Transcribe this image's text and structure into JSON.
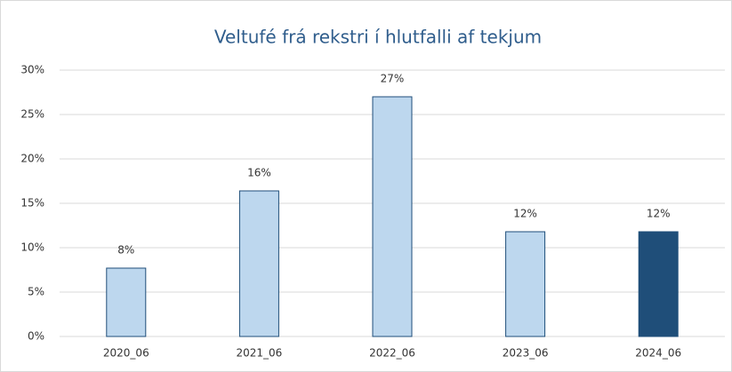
{
  "chart_data": {
    "type": "bar",
    "title": "Veltufé frá rekstri í hlutfalli af tekjum",
    "categories": [
      "2020_06",
      "2021_06",
      "2022_06",
      "2023_06",
      "2024_06"
    ],
    "values": [
      7.7,
      16.4,
      27,
      11.8,
      11.8
    ],
    "value_labels": [
      "8%",
      "16%",
      "27%",
      "12%",
      "12%"
    ],
    "colors": [
      "#bdd7ee",
      "#bdd7ee",
      "#bdd7ee",
      "#bdd7ee",
      "#1f4e79"
    ],
    "edge_color": "#1f4e79",
    "ylim": [
      0,
      30
    ],
    "yticks": [
      {
        "value": 0,
        "label": "0%"
      },
      {
        "value": 5,
        "label": "5%"
      },
      {
        "value": 10,
        "label": "10%"
      },
      {
        "value": 15,
        "label": "15%"
      },
      {
        "value": 20,
        "label": "20%"
      },
      {
        "value": 25,
        "label": "25%"
      },
      {
        "value": 30,
        "label": "30%"
      }
    ],
    "grid": true
  }
}
